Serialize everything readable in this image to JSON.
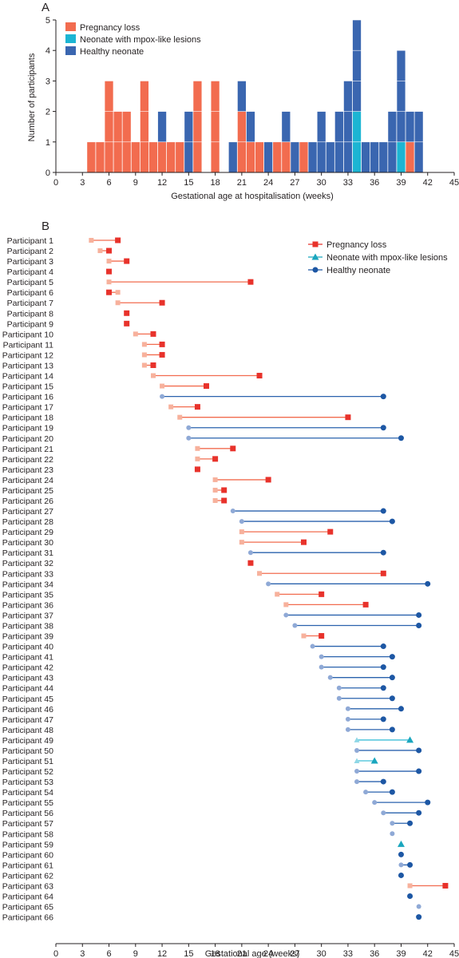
{
  "chart_data": [
    {
      "panel": "A",
      "type": "bar",
      "stacked": true,
      "xlabel": "Gestational age at hospitalisation (weeks)",
      "ylabel": "Number of participants",
      "xlim": [
        0,
        45
      ],
      "ylim": [
        0,
        5
      ],
      "xticks": [
        "0",
        "3",
        "6",
        "9",
        "12",
        "15",
        "18",
        "21",
        "24",
        "27",
        "30",
        "33",
        "36",
        "39",
        "42",
        "45"
      ],
      "yticks": [
        "0",
        "1",
        "2",
        "3",
        "4",
        "5"
      ],
      "legend_position": "top-left",
      "x": [
        4,
        5,
        6,
        7,
        8,
        9,
        10,
        11,
        12,
        13,
        14,
        15,
        16,
        18,
        20,
        21,
        22,
        23,
        24,
        25,
        26,
        27,
        28,
        29,
        30,
        31,
        32,
        33,
        34,
        35,
        36,
        37,
        38,
        39,
        40,
        41
      ],
      "series": [
        {
          "name": "Pregnancy loss",
          "color": "#f26c4f",
          "values": [
            1,
            1,
            3,
            2,
            2,
            1,
            3,
            1,
            1,
            1,
            1,
            0,
            3,
            3,
            0,
            2,
            1,
            1,
            0,
            1,
            1,
            0,
            1,
            0,
            0,
            0,
            0,
            0,
            0,
            0,
            0,
            0,
            0,
            0,
            1,
            0
          ]
        },
        {
          "name": "Neonate with mpox-like lesions",
          "color": "#1cb5d3",
          "values": [
            0,
            0,
            0,
            0,
            0,
            0,
            0,
            0,
            0,
            0,
            0,
            0,
            0,
            0,
            0,
            0,
            0,
            0,
            0,
            0,
            0,
            0,
            0,
            0,
            0,
            0,
            0,
            0,
            2,
            0,
            0,
            0,
            0,
            1,
            0,
            0
          ]
        },
        {
          "name": "Healthy neonate",
          "color": "#3a66b0",
          "values": [
            0,
            0,
            0,
            0,
            0,
            0,
            0,
            0,
            1,
            0,
            0,
            2,
            0,
            0,
            1,
            1,
            1,
            0,
            1,
            0,
            1,
            1,
            0,
            1,
            2,
            1,
            2,
            3,
            3,
            1,
            1,
            1,
            2,
            3,
            1,
            2
          ]
        }
      ]
    },
    {
      "panel": "B",
      "type": "range",
      "xlabel": "Gestational age (weeks)",
      "xlim": [
        0,
        45
      ],
      "xticks": [
        "0",
        "3",
        "6",
        "9",
        "12",
        "15",
        "18",
        "21",
        "24",
        "27",
        "30",
        "33",
        "36",
        "39",
        "42",
        "45"
      ],
      "legend_position": "top-right",
      "legend": [
        {
          "name": "Pregnancy loss",
          "marker": "square",
          "color": "#e8322b"
        },
        {
          "name": "Neonate with mpox-like lesions",
          "marker": "triangle",
          "color": "#1aa6be"
        },
        {
          "name": "Healthy neonate",
          "marker": "circle",
          "color": "#1d57a4"
        }
      ],
      "participants": [
        {
          "label": "Participant 1",
          "start": 4,
          "end": 7,
          "outcome": "loss"
        },
        {
          "label": "Participant 2",
          "start": 5,
          "end": 6,
          "outcome": "loss"
        },
        {
          "label": "Participant 3",
          "start": 6,
          "end": 8,
          "outcome": "loss"
        },
        {
          "label": "Participant 4",
          "start": 6,
          "end": 6,
          "outcome": "loss"
        },
        {
          "label": "Participant 5",
          "start": 6,
          "end": 22,
          "outcome": "loss"
        },
        {
          "label": "Participant 6",
          "start": 7,
          "end": 6,
          "outcome": "loss"
        },
        {
          "label": "Participant 7",
          "start": 7,
          "end": 12,
          "outcome": "loss"
        },
        {
          "label": "Participant 8",
          "start": 8,
          "end": 8,
          "outcome": "loss"
        },
        {
          "label": "Participant 9",
          "start": 8,
          "end": 8,
          "outcome": "loss"
        },
        {
          "label": "Participant 10",
          "start": 9,
          "end": 11,
          "outcome": "loss"
        },
        {
          "label": "Participant 11",
          "start": 10,
          "end": 12,
          "outcome": "loss"
        },
        {
          "label": "Participant 12",
          "start": 10,
          "end": 12,
          "outcome": "loss"
        },
        {
          "label": "Participant 13",
          "start": 10,
          "end": 11,
          "outcome": "loss"
        },
        {
          "label": "Participant 14",
          "start": 11,
          "end": 23,
          "outcome": "loss"
        },
        {
          "label": "Participant 15",
          "start": 12,
          "end": 17,
          "outcome": "loss"
        },
        {
          "label": "Participant 16",
          "start": 12,
          "end": 37,
          "outcome": "healthy"
        },
        {
          "label": "Participant 17",
          "start": 13,
          "end": 16,
          "outcome": "loss"
        },
        {
          "label": "Participant 18",
          "start": 14,
          "end": 33,
          "outcome": "loss"
        },
        {
          "label": "Participant 19",
          "start": 15,
          "end": 37,
          "outcome": "healthy"
        },
        {
          "label": "Participant 20",
          "start": 15,
          "end": 39,
          "outcome": "healthy"
        },
        {
          "label": "Participant 21",
          "start": 16,
          "end": 20,
          "outcome": "loss"
        },
        {
          "label": "Participant 22",
          "start": 16,
          "end": 18,
          "outcome": "loss"
        },
        {
          "label": "Participant 23",
          "start": 16,
          "end": 16,
          "outcome": "loss"
        },
        {
          "label": "Participant 24",
          "start": 18,
          "end": 24,
          "outcome": "loss"
        },
        {
          "label": "Participant 25",
          "start": 18,
          "end": 19,
          "outcome": "loss"
        },
        {
          "label": "Participant 26",
          "start": 18,
          "end": 19,
          "outcome": "loss"
        },
        {
          "label": "Participant 27",
          "start": 20,
          "end": 37,
          "outcome": "healthy"
        },
        {
          "label": "Participant 28",
          "start": 21,
          "end": 38,
          "outcome": "healthy"
        },
        {
          "label": "Participant 29",
          "start": 21,
          "end": 31,
          "outcome": "loss"
        },
        {
          "label": "Participant 30",
          "start": 21,
          "end": 28,
          "outcome": "loss"
        },
        {
          "label": "Participant 31",
          "start": 22,
          "end": 37,
          "outcome": "healthy"
        },
        {
          "label": "Participant 32",
          "start": 22,
          "end": 22,
          "outcome": "loss"
        },
        {
          "label": "Participant 33",
          "start": 23,
          "end": 37,
          "outcome": "loss"
        },
        {
          "label": "Participant 34",
          "start": 24,
          "end": 42,
          "outcome": "healthy"
        },
        {
          "label": "Participant 35",
          "start": 25,
          "end": 30,
          "outcome": "loss"
        },
        {
          "label": "Participant 36",
          "start": 26,
          "end": 35,
          "outcome": "loss"
        },
        {
          "label": "Participant 37",
          "start": 26,
          "end": 41,
          "outcome": "healthy"
        },
        {
          "label": "Participant 38",
          "start": 27,
          "end": 41,
          "outcome": "healthy"
        },
        {
          "label": "Participant 39",
          "start": 28,
          "end": 30,
          "outcome": "loss"
        },
        {
          "label": "Participant 40",
          "start": 29,
          "end": 37,
          "outcome": "healthy"
        },
        {
          "label": "Participant 41",
          "start": 30,
          "end": 38,
          "outcome": "healthy"
        },
        {
          "label": "Participant 42",
          "start": 30,
          "end": 37,
          "outcome": "healthy"
        },
        {
          "label": "Participant 43",
          "start": 31,
          "end": 38,
          "outcome": "healthy"
        },
        {
          "label": "Participant 44",
          "start": 32,
          "end": 37,
          "outcome": "healthy"
        },
        {
          "label": "Participant 45",
          "start": 32,
          "end": 38,
          "outcome": "healthy"
        },
        {
          "label": "Participant 46",
          "start": 33,
          "end": 39,
          "outcome": "healthy"
        },
        {
          "label": "Participant 47",
          "start": 33,
          "end": 37,
          "outcome": "healthy"
        },
        {
          "label": "Participant 48",
          "start": 33,
          "end": 38,
          "outcome": "healthy"
        },
        {
          "label": "Participant 49",
          "start": 34,
          "end": 40,
          "outcome": "lesions"
        },
        {
          "label": "Participant 50",
          "start": 34,
          "end": 41,
          "outcome": "healthy"
        },
        {
          "label": "Participant 51",
          "start": 34,
          "end": 36,
          "outcome": "lesions"
        },
        {
          "label": "Participant 52",
          "start": 34,
          "end": 41,
          "outcome": "healthy"
        },
        {
          "label": "Participant 53",
          "start": 34,
          "end": 37,
          "outcome": "healthy"
        },
        {
          "label": "Participant 54",
          "start": 35,
          "end": 38,
          "outcome": "healthy"
        },
        {
          "label": "Participant 55",
          "start": 36,
          "end": 42,
          "outcome": "healthy"
        },
        {
          "label": "Participant 56",
          "start": 37,
          "end": 41,
          "outcome": "healthy"
        },
        {
          "label": "Participant 57",
          "start": 38,
          "end": 40,
          "outcome": "healthy"
        },
        {
          "label": "Participant 58",
          "start": 38,
          "end": null,
          "outcome": "healthy"
        },
        {
          "label": "Participant 59",
          "start": 39,
          "end": 39,
          "outcome": "lesions"
        },
        {
          "label": "Participant 60",
          "start": 39,
          "end": 39,
          "outcome": "healthy"
        },
        {
          "label": "Participant 61",
          "start": 39,
          "end": 40,
          "outcome": "healthy"
        },
        {
          "label": "Participant 62",
          "start": 39,
          "end": 39,
          "outcome": "healthy"
        },
        {
          "label": "Participant 63",
          "start": 40,
          "end": 44,
          "outcome": "loss"
        },
        {
          "label": "Participant 64",
          "start": 40,
          "end": 40,
          "outcome": "healthy"
        },
        {
          "label": "Participant 65",
          "start": 41,
          "end": null,
          "outcome": "healthy"
        },
        {
          "label": "Participant 66",
          "start": 41,
          "end": 41,
          "outcome": "healthy"
        }
      ]
    }
  ]
}
